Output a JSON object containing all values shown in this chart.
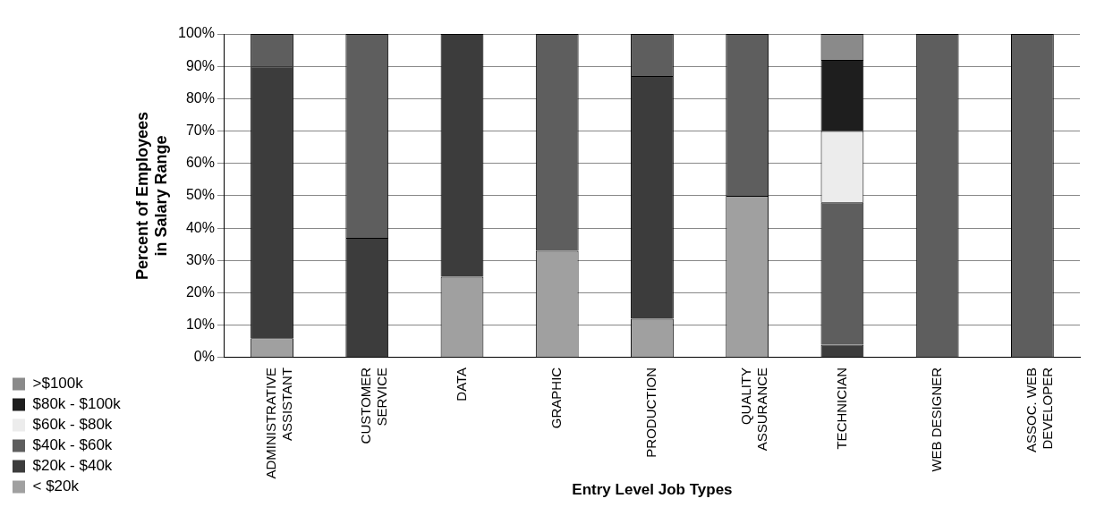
{
  "chart_data": {
    "type": "bar",
    "stacked": true,
    "xlabel": "Entry Level Job Types",
    "ylabel": "Percent of Employees\nin Salary Range",
    "categories": [
      "ADMINISTRATIVE\nASSISTANT",
      "CUSTOMER\nSERVICE",
      "DATA",
      "GRAPHIC",
      "PRODUCTION",
      "QUALITY\nASSURANCE",
      "TECHNICIAN",
      "WEB DESIGNER",
      "ASSOC. WEB\nDEVELOPER"
    ],
    "series": [
      {
        "name": "< $20k",
        "color": "#a0a0a0",
        "values": [
          6,
          0,
          25,
          33,
          12,
          50,
          0,
          0,
          0
        ]
      },
      {
        "name": "$20k - $40k",
        "color": "#3c3c3c",
        "values": [
          84,
          37,
          75,
          0,
          75,
          0,
          4,
          0,
          0
        ]
      },
      {
        "name": "$40k - $60k",
        "color": "#5e5e5e",
        "values": [
          10,
          63,
          0,
          67,
          13,
          50,
          44,
          100,
          100
        ]
      },
      {
        "name": "$60k - $80k",
        "color": "#ececec",
        "values": [
          0,
          0,
          0,
          0,
          0,
          0,
          22,
          0,
          0
        ]
      },
      {
        "name": "$80k - $100k",
        "color": "#1e1e1e",
        "values": [
          0,
          0,
          0,
          0,
          0,
          0,
          22,
          0,
          0
        ]
      },
      {
        "name": ">$100k",
        "color": "#8a8a8a",
        "values": [
          0,
          0,
          0,
          0,
          0,
          0,
          8,
          0,
          0
        ]
      }
    ],
    "ylim": [
      0,
      100
    ],
    "yticks": [
      {
        "value": 0,
        "label": "0%"
      },
      {
        "value": 10,
        "label": "10%"
      },
      {
        "value": 20,
        "label": "20%"
      },
      {
        "value": 30,
        "label": "30%"
      },
      {
        "value": 40,
        "label": "40%"
      },
      {
        "value": 50,
        "label": "50%"
      },
      {
        "value": 60,
        "label": "60%"
      },
      {
        "value": 70,
        "label": "70%"
      },
      {
        "value": 80,
        "label": "80%"
      },
      {
        "value": 90,
        "label": "90%"
      },
      {
        "value": 100,
        "label": "100%"
      }
    ],
    "grid": "y",
    "legend": "bottom left"
  }
}
